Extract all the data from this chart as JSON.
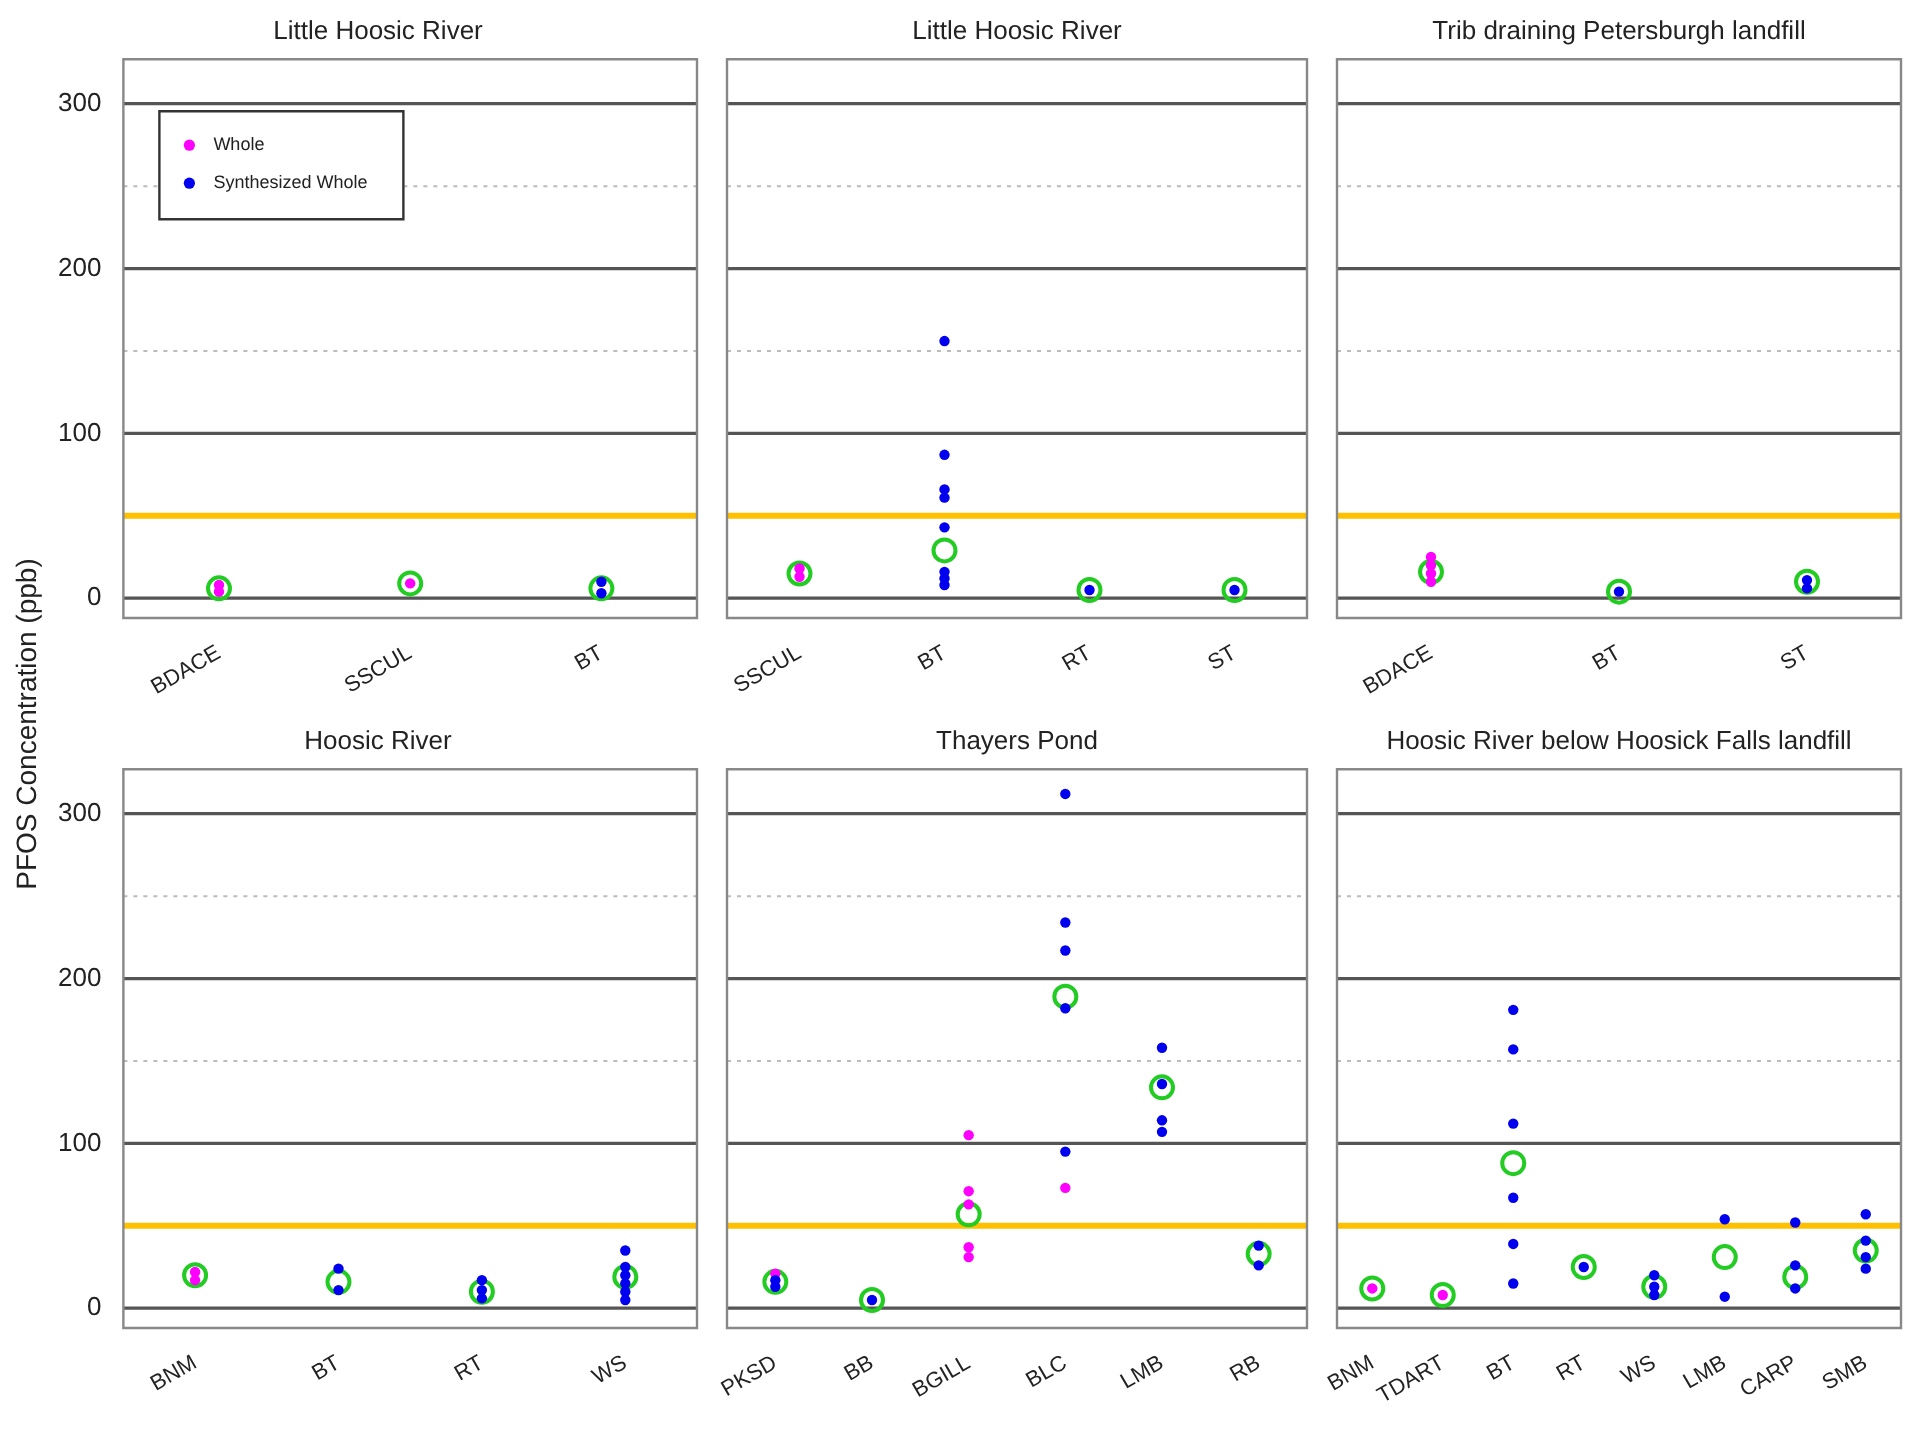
{
  "chart_data": [
    {
      "type": "scatter",
      "title": "Little Hoosic River",
      "ylabel": "PFOS Concentration (ppb)",
      "categories": [
        "BDACE",
        "SSCUL",
        "BT"
      ],
      "ylim": [
        -12,
        327
      ],
      "yticks": [
        0,
        {
          "value": 50,
          "label": null
        },
        100,
        {
          "value": 150,
          "label": null
        },
        200,
        {
          "value": 250,
          "label": null
        },
        300
      ],
      "grid": "y",
      "legend": "top left",
      "marker": "circle",
      "ref_lines": [
        {
          "axis": "y",
          "value": 50,
          "color": "#ffc000"
        }
      ],
      "series": [
        {
          "color": "#22cc22",
          "marker": "circle",
          "x": [
            "BDACE",
            "SSCUL",
            "BT"
          ],
          "values": [
            6,
            9,
            6
          ]
        },
        {
          "name": "Whole",
          "color": "#ff00ff",
          "x": [
            "BDACE",
            "BDACE",
            "SSCUL"
          ],
          "values": [
            4,
            8,
            9
          ]
        },
        {
          "name": "Synthesized Whole",
          "color": "#0000ee",
          "x": [
            "BT",
            "BT"
          ],
          "values": [
            3,
            10
          ]
        }
      ]
    },
    {
      "type": "scatter",
      "title": "Little Hoosic River",
      "categories": [
        "SSCUL",
        "BT",
        "RT",
        "ST"
      ],
      "ylim": [
        -12,
        327
      ],
      "yticks": [
        0,
        {
          "value": 50,
          "label": null
        },
        100,
        {
          "value": 150,
          "label": null
        },
        200,
        {
          "value": 250,
          "label": null
        },
        300
      ],
      "grid": "y",
      "tick_labels": "x",
      "marker": "circle",
      "ref_lines": [
        {
          "axis": "y",
          "value": 50,
          "color": "#ffc000"
        }
      ],
      "series": [
        {
          "color": "#22cc22",
          "marker": "circle",
          "x": [
            "SSCUL",
            "BT",
            "RT",
            "ST"
          ],
          "values": [
            15,
            29,
            5,
            5
          ]
        },
        {
          "color": "#ff00ff",
          "x": [
            "SSCUL",
            "SSCUL"
          ],
          "values": [
            13,
            18
          ]
        },
        {
          "color": "#0000ee",
          "x": [
            "BT",
            "BT",
            "BT",
            "BT",
            "BT",
            "BT",
            "BT",
            "BT",
            "RT",
            "ST"
          ],
          "values": [
            156,
            87,
            66,
            61,
            43,
            16,
            12,
            8,
            5,
            5
          ]
        }
      ]
    },
    {
      "type": "scatter",
      "title": "Trib draining Petersburgh landfill",
      "categories": [
        "BDACE",
        "BT",
        "ST"
      ],
      "ylim": [
        -12,
        327
      ],
      "yticks": [
        0,
        {
          "value": 50,
          "label": null
        },
        100,
        {
          "value": 150,
          "label": null
        },
        200,
        {
          "value": 250,
          "label": null
        },
        300
      ],
      "grid": "y",
      "tick_labels": "x",
      "marker": "circle",
      "ref_lines": [
        {
          "axis": "y",
          "value": 50,
          "color": "#ffc000"
        }
      ],
      "series": [
        {
          "color": "#22cc22",
          "marker": "circle",
          "x": [
            "BDACE",
            "BT",
            "ST"
          ],
          "values": [
            16,
            4,
            10
          ]
        },
        {
          "color": "#ff00ff",
          "x": [
            "BDACE",
            "BDACE",
            "BDACE",
            "BDACE"
          ],
          "values": [
            10,
            15,
            20,
            25
          ]
        },
        {
          "color": "#0000ee",
          "x": [
            "BT",
            "ST",
            "ST"
          ],
          "values": [
            4,
            6,
            11
          ]
        }
      ]
    },
    {
      "type": "scatter",
      "title": "Hoosic River",
      "categories": [
        "BNM",
        "BT",
        "RT",
        "WS"
      ],
      "ylim": [
        -12,
        327
      ],
      "yticks": [
        0,
        {
          "value": 50,
          "label": null
        },
        100,
        {
          "value": 150,
          "label": null
        },
        200,
        {
          "value": 250,
          "label": null
        },
        300
      ],
      "grid": "y",
      "marker": "circle",
      "ref_lines": [
        {
          "axis": "y",
          "value": 50,
          "color": "#ffc000"
        }
      ],
      "series": [
        {
          "color": "#22cc22",
          "marker": "circle",
          "x": [
            "BNM",
            "BT",
            "RT",
            "WS"
          ],
          "values": [
            20,
            16,
            10,
            19
          ]
        },
        {
          "color": "#ff00ff",
          "x": [
            "BNM",
            "BNM"
          ],
          "values": [
            17,
            22
          ]
        },
        {
          "color": "#0000ee",
          "x": [
            "BT",
            "BT",
            "RT",
            "RT",
            "RT",
            "WS",
            "WS",
            "WS",
            "WS",
            "WS",
            "WS"
          ],
          "values": [
            11,
            24,
            6,
            11,
            17,
            5,
            10,
            15,
            20,
            25,
            35
          ]
        }
      ]
    },
    {
      "type": "scatter",
      "title": "Thayers Pond",
      "categories": [
        "PKSD",
        "BB",
        "BGILL",
        "BLC",
        "LMB",
        "RB"
      ],
      "ylim": [
        -12,
        327
      ],
      "yticks": [
        0,
        {
          "value": 50,
          "label": null
        },
        100,
        {
          "value": 150,
          "label": null
        },
        200,
        {
          "value": 250,
          "label": null
        },
        300
      ],
      "grid": "y",
      "tick_labels": "x",
      "marker": "circle",
      "ref_lines": [
        {
          "axis": "y",
          "value": 50,
          "color": "#ffc000"
        }
      ],
      "series": [
        {
          "color": "#22cc22",
          "marker": "circle",
          "x": [
            "PKSD",
            "BB",
            "BGILL",
            "BLC",
            "LMB",
            "RB"
          ],
          "values": [
            16,
            5,
            57,
            189,
            134,
            33
          ]
        },
        {
          "color": "#ff00ff",
          "x": [
            "PKSD",
            "BGILL",
            "BGILL",
            "BGILL",
            "BGILL",
            "BGILL",
            "BLC"
          ],
          "values": [
            21,
            105,
            71,
            63,
            37,
            31,
            73
          ]
        },
        {
          "color": "#0000ee",
          "x": [
            "PKSD",
            "PKSD",
            "BB",
            "BLC",
            "BLC",
            "BLC",
            "BLC",
            "BLC",
            "LMB",
            "LMB",
            "LMB",
            "LMB",
            "RB",
            "RB"
          ],
          "values": [
            13,
            17,
            5,
            312,
            234,
            217,
            182,
            95,
            158,
            136,
            114,
            107,
            38,
            26
          ]
        }
      ]
    },
    {
      "type": "scatter",
      "title": "Hoosic River below Hoosick Falls landfill",
      "categories": [
        "BNM",
        "TDART",
        "BT",
        "RT",
        "WS",
        "LMB",
        "CARP",
        "SMB"
      ],
      "ylim": [
        -12,
        327
      ],
      "yticks": [
        0,
        {
          "value": 50,
          "label": null
        },
        100,
        {
          "value": 150,
          "label": null
        },
        200,
        {
          "value": 250,
          "label": null
        },
        300
      ],
      "grid": "y",
      "tick_labels": "x",
      "marker": "circle",
      "ref_lines": [
        {
          "axis": "y",
          "value": 50,
          "color": "#ffc000"
        }
      ],
      "series": [
        {
          "color": "#22cc22",
          "marker": "circle",
          "x": [
            "BNM",
            "TDART",
            "BT",
            "RT",
            "WS",
            "LMB",
            "CARP",
            "SMB"
          ],
          "values": [
            12,
            8,
            88,
            25,
            13,
            31,
            19,
            35
          ]
        },
        {
          "color": "#ff00ff",
          "x": [
            "BNM",
            "TDART"
          ],
          "values": [
            12,
            8
          ]
        },
        {
          "color": "#0000ee",
          "x": [
            "BT",
            "BT",
            "BT",
            "BT",
            "BT",
            "BT",
            "RT",
            "WS",
            "WS",
            "WS",
            "LMB",
            "LMB",
            "CARP",
            "CARP",
            "CARP",
            "SMB",
            "SMB",
            "SMB",
            "SMB"
          ],
          "values": [
            181,
            157,
            112,
            67,
            39,
            15,
            25,
            8,
            13,
            20,
            54,
            7,
            52,
            26,
            12,
            57,
            41,
            31,
            24
          ]
        }
      ]
    }
  ]
}
